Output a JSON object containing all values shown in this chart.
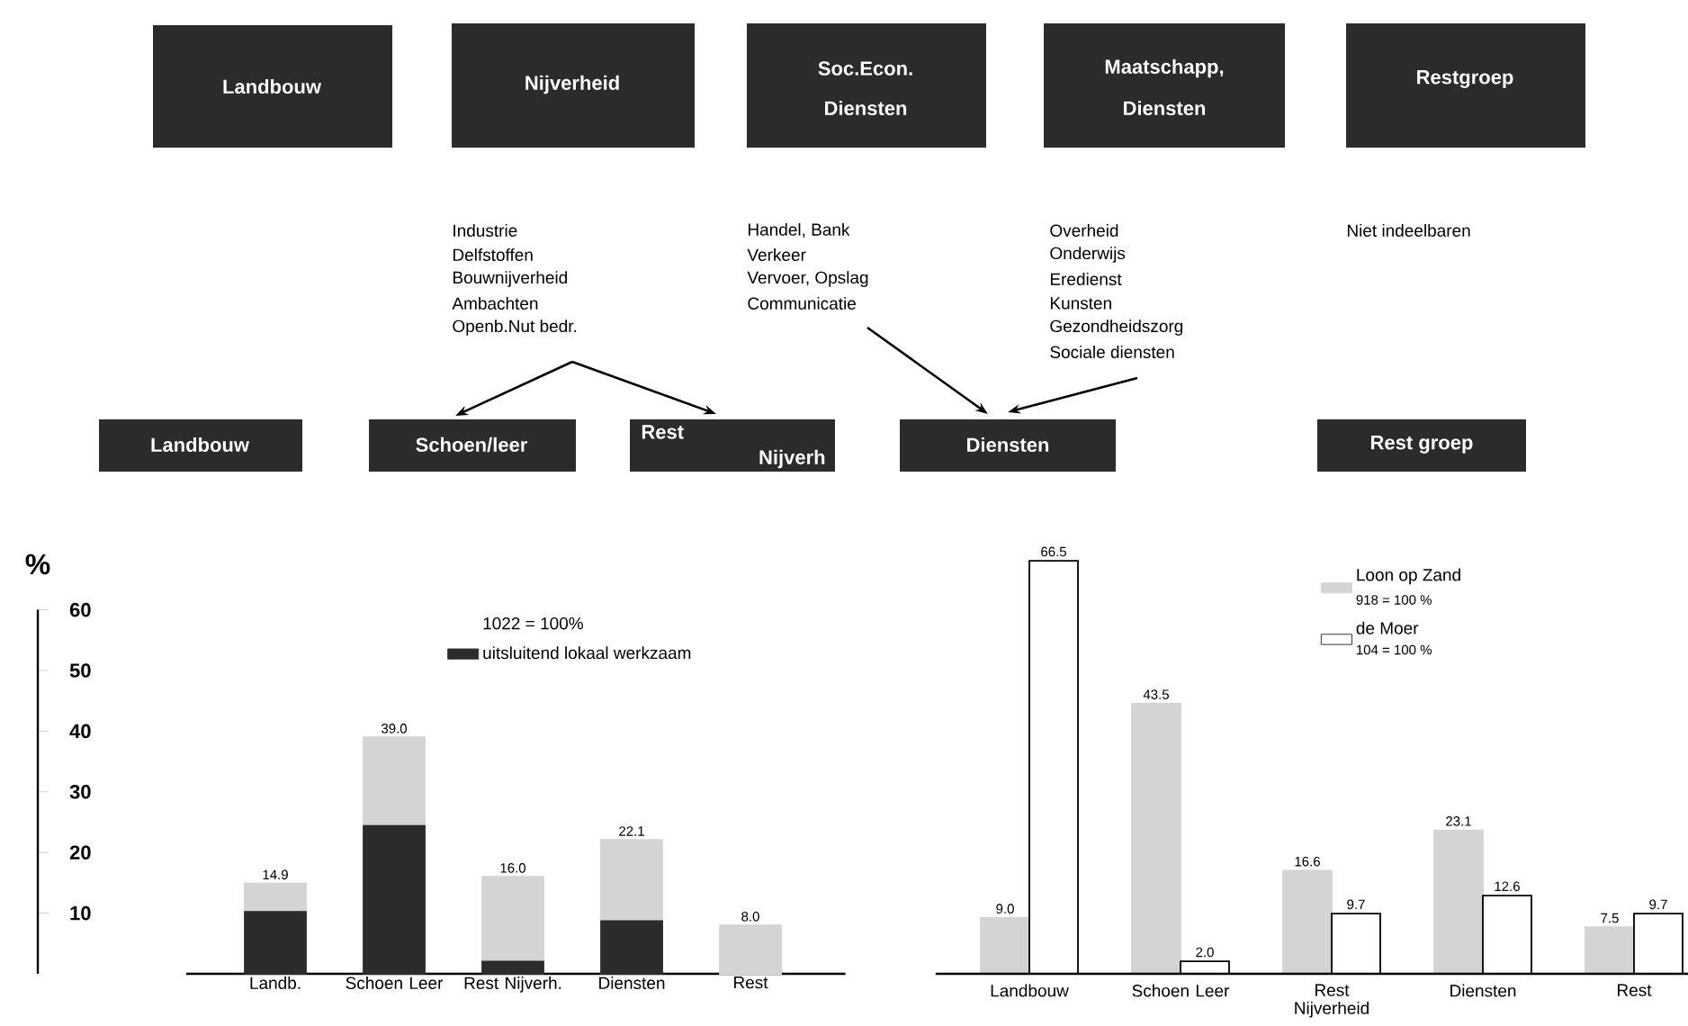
{
  "chart_data": [
    {
      "type": "other",
      "annotations": [
        "Landbouw",
        "Nijverheid",
        "Soc.Econ.",
        "Diensten",
        "Maatschapp,",
        "Diensten",
        "Restgroep",
        "Industrie",
        "Delfstoffen",
        "Bouwnijverheid",
        "Ambachten",
        "Openb.Nut bedr.",
        "Handel,   Bank",
        "Verkeer",
        "Vervoer, Opslag",
        "Communicatie",
        "Overheid",
        "Onderwijs",
        "Eredienst",
        "Kunsten",
        "Gezondheidszorg",
        "Sociale diensten",
        "Niet indeelbaren",
        "Landbouw",
        "Schoen/leer",
        "Rest",
        "Nijverh",
        "Diensten",
        "Rest groep"
      ]
    },
    {
      "type": "bar",
      "stacked": true,
      "categories": [
        "Landb.",
        "Schoen Leer",
        "Rest Nijverh.",
        "Diensten",
        "Rest"
      ],
      "series": [
        {
          "name": "uitsluitend lokaal werkzaam",
          "color": "#2b2b2b",
          "values": [
            10.2,
            24.4,
            2.0,
            8.7,
            0
          ]
        },
        {
          "color": "#d4d4d4",
          "values": [
            4.7,
            14.6,
            14.0,
            13.4,
            8.0
          ]
        }
      ],
      "totals": [
        "14.9",
        "39.0",
        "16.0",
        "22.1",
        "8.0"
      ],
      "legend_title": "1022 = 100%",
      "legend": "top right",
      "ylabel": "%",
      "ylim": [
        0,
        60
      ],
      "yticks": [
        10,
        20,
        30,
        40,
        50,
        60
      ]
    },
    {
      "type": "bar",
      "categories": [
        "Landbouw",
        "Schoen Leer",
        "Rest Nijverheid",
        "Diensten",
        "Rest"
      ],
      "series": [
        {
          "name": "Loon op Zand",
          "color": "#d4d4d4",
          "values": [
            9.0,
            43.5,
            16.6,
            23.1,
            7.5
          ],
          "value_labels": [
            "9.0",
            "43.5",
            "16.6",
            "23.1",
            "7.5"
          ]
        },
        {
          "name": "de Moer",
          "color": "#ffffff",
          "values": [
            66.5,
            2.0,
            9.7,
            12.6,
            9.7
          ],
          "value_labels": [
            "66.5",
            "2.0",
            "9.7",
            "12.6",
            "9.7"
          ]
        }
      ],
      "legend": "top right",
      "annotations": [
        "918 = 100 %",
        "104 = 100 %"
      ]
    }
  ]
}
